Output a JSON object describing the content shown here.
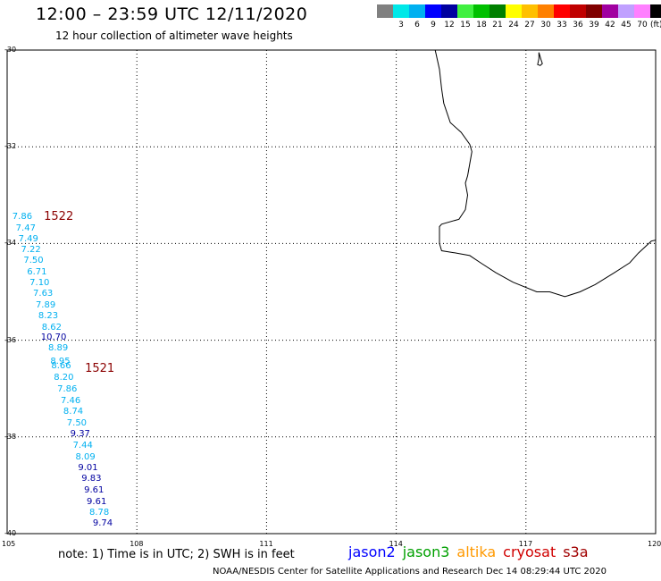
{
  "header": {
    "title": "12:00 – 23:59 UTC 12/11/2020",
    "subtitle": "12 hour collection of altimeter wave heights"
  },
  "color_scale": {
    "unit": "(ft)",
    "bins": [
      {
        "label": "",
        "color": "#808080"
      },
      {
        "label": "3",
        "color": "#00e8e8"
      },
      {
        "label": "6",
        "color": "#00b0f0"
      },
      {
        "label": "9",
        "color": "#0000ff"
      },
      {
        "label": "12",
        "color": "#0000a0"
      },
      {
        "label": "15",
        "color": "#40f040"
      },
      {
        "label": "18",
        "color": "#00c000"
      },
      {
        "label": "21",
        "color": "#008000"
      },
      {
        "label": "24",
        "color": "#ffff00"
      },
      {
        "label": "27",
        "color": "#ffc000"
      },
      {
        "label": "30",
        "color": "#ff8000"
      },
      {
        "label": "33",
        "color": "#ff0000"
      },
      {
        "label": "36",
        "color": "#c00000"
      },
      {
        "label": "39",
        "color": "#800000"
      },
      {
        "label": "42",
        "color": "#a000a0"
      },
      {
        "label": "45",
        "color": "#c0a0ff"
      },
      {
        "label": "70",
        "color": "#ff80ff"
      },
      {
        "label": "",
        "color": "#000000"
      }
    ]
  },
  "map": {
    "lon_range": [
      105,
      120
    ],
    "lat_range": [
      -40,
      -30
    ],
    "lat_labels": [
      {
        "v": -30,
        "t": "-30"
      },
      {
        "v": -32,
        "t": "-32"
      },
      {
        "v": -34,
        "t": "-34"
      },
      {
        "v": -36,
        "t": "-36"
      },
      {
        "v": -38,
        "t": "-38"
      },
      {
        "v": -40,
        "t": "-40"
      }
    ],
    "lon_labels": [
      {
        "v": 105,
        "t": "105"
      },
      {
        "v": 108,
        "t": "108"
      },
      {
        "v": 111,
        "t": "111"
      },
      {
        "v": 114,
        "t": "114"
      },
      {
        "v": 117,
        "t": "117"
      },
      {
        "v": 120,
        "t": "120"
      }
    ],
    "passes": [
      {
        "label": "1522",
        "lon": 105.85,
        "lat": -33.45
      },
      {
        "label": "1521",
        "lon": 106.8,
        "lat": -36.6
      }
    ],
    "observations": [
      {
        "text": "7.86",
        "lon": 105.12,
        "lat": -33.45,
        "color": "#00b0f0"
      },
      {
        "text": "7.47",
        "lon": 105.2,
        "lat": -33.7,
        "color": "#00b0f0"
      },
      {
        "text": "7.49",
        "lon": 105.26,
        "lat": -33.92,
        "color": "#00b0f0"
      },
      {
        "text": "7.22",
        "lon": 105.32,
        "lat": -34.14,
        "color": "#00b0f0"
      },
      {
        "text": "7.50",
        "lon": 105.38,
        "lat": -34.36,
        "color": "#00b0f0"
      },
      {
        "text": "6.71",
        "lon": 105.46,
        "lat": -34.6,
        "color": "#00b0f0"
      },
      {
        "text": "7.10",
        "lon": 105.52,
        "lat": -34.82,
        "color": "#00b0f0"
      },
      {
        "text": "7.63",
        "lon": 105.6,
        "lat": -35.05,
        "color": "#00b0f0"
      },
      {
        "text": "7.89",
        "lon": 105.66,
        "lat": -35.28,
        "color": "#00b0f0"
      },
      {
        "text": "8.23",
        "lon": 105.72,
        "lat": -35.5,
        "color": "#00b0f0"
      },
      {
        "text": "8.62",
        "lon": 105.8,
        "lat": -35.74,
        "color": "#00b0f0"
      },
      {
        "text": "10.70",
        "lon": 105.78,
        "lat": -35.96,
        "color": "#0000a0"
      },
      {
        "text": "8.89",
        "lon": 105.95,
        "lat": -36.18,
        "color": "#00b0f0"
      },
      {
        "text": "8.95",
        "lon": 106.0,
        "lat": -36.45,
        "color": "#00b0f0"
      },
      {
        "text": "8.66",
        "lon": 106.02,
        "lat": -36.55,
        "color": "#00b0f0"
      },
      {
        "text": "8.20",
        "lon": 106.08,
        "lat": -36.78,
        "color": "#00b0f0"
      },
      {
        "text": "7.86",
        "lon": 106.16,
        "lat": -37.02,
        "color": "#00b0f0"
      },
      {
        "text": "7.46",
        "lon": 106.24,
        "lat": -37.26,
        "color": "#00b0f0"
      },
      {
        "text": "8.74",
        "lon": 106.3,
        "lat": -37.48,
        "color": "#00b0f0"
      },
      {
        "text": "7.50",
        "lon": 106.38,
        "lat": -37.72,
        "color": "#00b0f0"
      },
      {
        "text": "9.37",
        "lon": 106.46,
        "lat": -37.95,
        "color": "#0000a0"
      },
      {
        "text": "7.44",
        "lon": 106.52,
        "lat": -38.18,
        "color": "#00b0f0"
      },
      {
        "text": "8.09",
        "lon": 106.58,
        "lat": -38.42,
        "color": "#00b0f0"
      },
      {
        "text": "9.01",
        "lon": 106.64,
        "lat": -38.65,
        "color": "#0000a0"
      },
      {
        "text": "9.83",
        "lon": 106.72,
        "lat": -38.88,
        "color": "#0000a0"
      },
      {
        "text": "9.61",
        "lon": 106.78,
        "lat": -39.12,
        "color": "#0000a0"
      },
      {
        "text": "9.61",
        "lon": 106.84,
        "lat": -39.35,
        "color": "#0000a0"
      },
      {
        "text": "8.78",
        "lon": 106.9,
        "lat": -39.58,
        "color": "#00b0f0"
      },
      {
        "text": "9.74",
        "lon": 106.98,
        "lat": -39.8,
        "color": "#0000a0"
      }
    ],
    "coastline": [
      [
        114.9,
        -30.0
      ],
      [
        115.0,
        -30.4
      ],
      [
        115.05,
        -30.8
      ],
      [
        115.1,
        -31.1
      ],
      [
        115.25,
        -31.5
      ],
      [
        115.5,
        -31.7
      ],
      [
        115.7,
        -31.95
      ],
      [
        115.75,
        -32.1
      ],
      [
        115.7,
        -32.35
      ],
      [
        115.65,
        -32.6
      ],
      [
        115.6,
        -32.75
      ],
      [
        115.65,
        -33.0
      ],
      [
        115.6,
        -33.3
      ],
      [
        115.45,
        -33.5
      ],
      [
        115.05,
        -33.6
      ],
      [
        115.0,
        -33.65
      ],
      [
        115.0,
        -34.0
      ],
      [
        115.05,
        -34.15
      ],
      [
        115.4,
        -34.2
      ],
      [
        115.7,
        -34.25
      ],
      [
        115.95,
        -34.4
      ],
      [
        116.3,
        -34.6
      ],
      [
        116.7,
        -34.8
      ],
      [
        117.25,
        -35.0
      ],
      [
        117.55,
        -35.0
      ],
      [
        117.9,
        -35.1
      ],
      [
        118.25,
        -35.0
      ],
      [
        118.6,
        -34.85
      ],
      [
        119.05,
        -34.6
      ],
      [
        119.4,
        -34.4
      ],
      [
        119.6,
        -34.2
      ],
      [
        119.9,
        -33.95
      ],
      [
        120.0,
        -33.93
      ]
    ],
    "island": [
      [
        117.3,
        -30.05
      ],
      [
        117.35,
        -30.2
      ],
      [
        117.38,
        -30.28
      ],
      [
        117.33,
        -30.32
      ],
      [
        117.27,
        -30.3
      ],
      [
        117.3,
        -30.18
      ]
    ]
  },
  "note": "note:  1) Time is in UTC;  2) SWH is in feet",
  "legend": {
    "items": [
      {
        "label": "jason2",
        "color": "#0000ff"
      },
      {
        "label": "jason3",
        "color": "#00a000"
      },
      {
        "label": "altika",
        "color": "#ff9900"
      },
      {
        "label": "cryosat",
        "color": "#d00000"
      },
      {
        "label": "s3a",
        "color": "#a00000"
      }
    ]
  },
  "credit": "NOAA/NESDIS Center for Satellite Applications and Research     Dec 14 08:29:44 UTC 2020"
}
